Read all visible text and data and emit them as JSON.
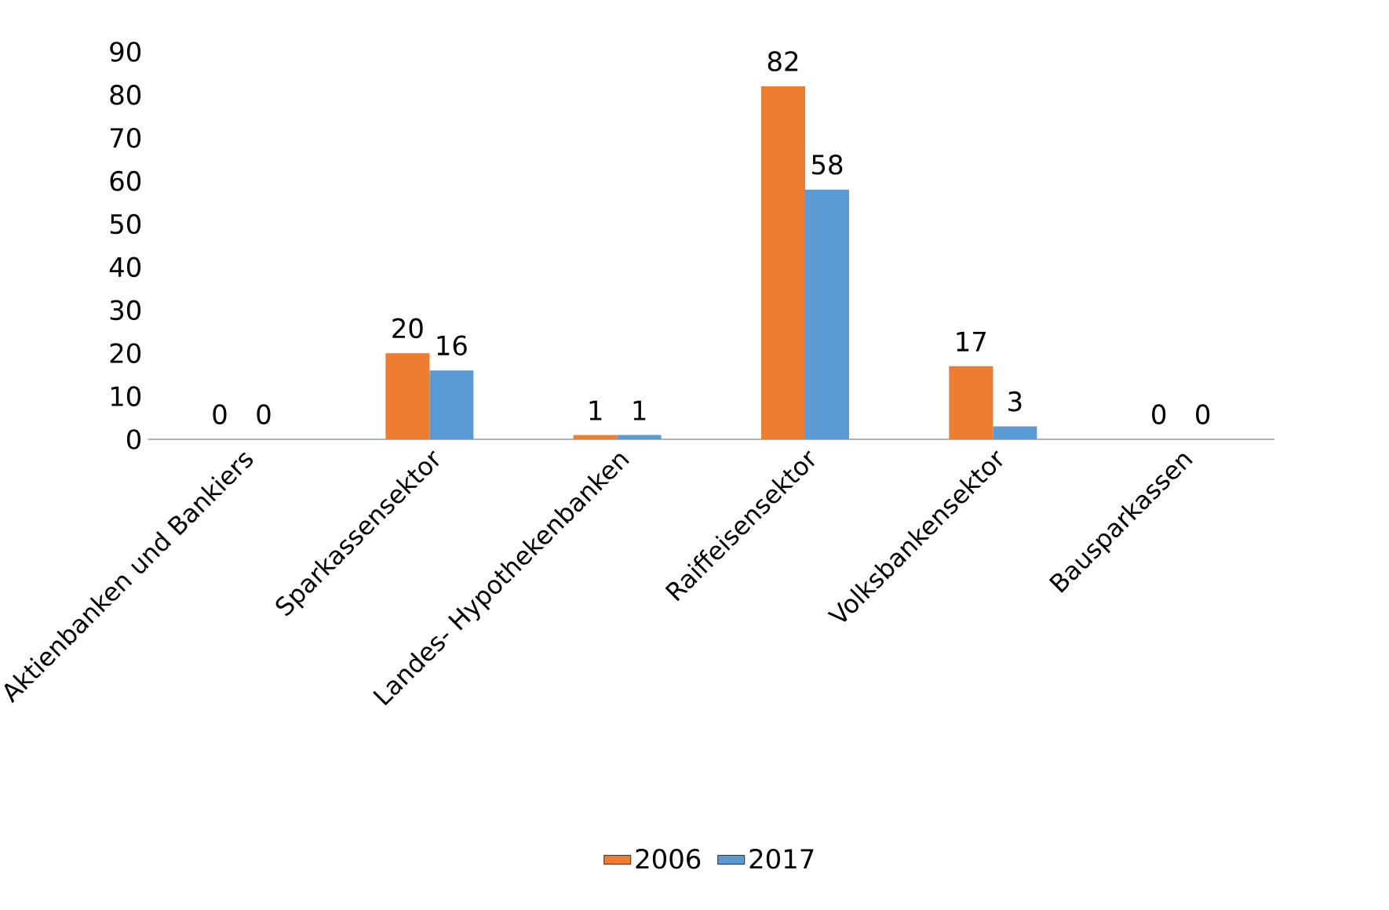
{
  "chart_data": {
    "type": "bar",
    "categories": [
      "Aktienbanken und Bankiers",
      "Sparkassensektor",
      "Landes- Hypothekenbanken",
      "Raiffeisensektor",
      "Volksbankensektor",
      "Bausparkassen"
    ],
    "series": [
      {
        "name": "2006",
        "color": "#ed7d31",
        "values": [
          0,
          20,
          1,
          82,
          17,
          0
        ]
      },
      {
        "name": "2017",
        "color": "#5b9bd5",
        "values": [
          0,
          16,
          1,
          58,
          3,
          0
        ]
      }
    ],
    "ylim": [
      0,
      90
    ],
    "yticks": [
      0,
      10,
      20,
      30,
      40,
      50,
      60,
      70,
      80,
      90
    ],
    "data_labels": true,
    "legend": "bottom",
    "grid": false
  }
}
